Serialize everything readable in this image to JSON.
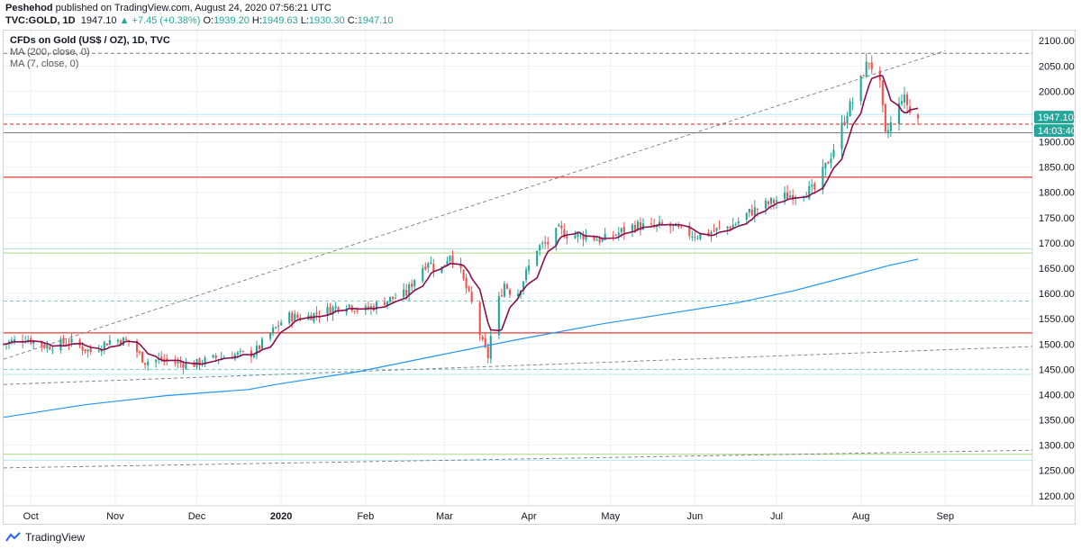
{
  "header": {
    "publisher": "Peshehod",
    "published_text": "published on TradingView.com, August 24, 2020 07:56:21 UTC",
    "symbol": "TVC:GOLD, 1D",
    "last": "1947.10",
    "change": "+7.45 (+0.38%)",
    "o_label": "O:",
    "o_value": "1939.20",
    "h_label": "H:",
    "h_value": "1949.63",
    "l_label": "L:",
    "l_value": "1930.30",
    "c_label": "C:",
    "c_value": "1947.10"
  },
  "legend": {
    "title": "CFDs on Gold (US$ / OZ), 1D, TVC",
    "ma200": "MA (200, close, 0)",
    "ma7": "MA (7, close, 0)"
  },
  "price_tag": {
    "price": "1947.10",
    "countdown": "14:03:40"
  },
  "footer": {
    "brand": "TradingView"
  },
  "colors": {
    "up": "#26a69a",
    "down": "#ef5350",
    "ma7": "#880e4f",
    "ma200": "#2196f3",
    "red_line": "#e53935",
    "green_line": "#aed581",
    "grid": "#eef1f5",
    "axis_text": "#131722"
  },
  "chart_data": {
    "type": "candlestick",
    "title": "CFDs on Gold (US$ / OZ), 1D, TVC",
    "ylim": [
      1180,
      2120
    ],
    "y_ticks": [
      1200,
      1250,
      1300,
      1350,
      1400,
      1450,
      1500,
      1550,
      1600,
      1650,
      1700,
      1750,
      1800,
      1850,
      1900,
      1950,
      2000,
      2050,
      2100
    ],
    "x_ticks": [
      {
        "label": "Oct",
        "day": 10
      },
      {
        "label": "Nov",
        "day": 41
      },
      {
        "label": "Dec",
        "day": 71
      },
      {
        "label": "2020",
        "day": 102
      },
      {
        "label": "Feb",
        "day": 133
      },
      {
        "label": "Mar",
        "day": 162
      },
      {
        "label": "Apr",
        "day": 193
      },
      {
        "label": "May",
        "day": 223
      },
      {
        "label": "Jun",
        "day": 254
      },
      {
        "label": "Jul",
        "day": 284
      },
      {
        "label": "Aug",
        "day": 315
      },
      {
        "label": "Sep",
        "day": 346
      }
    ],
    "xlim": [
      0,
      378
    ],
    "anchors": [
      [
        0,
        1500
      ],
      [
        8,
        1512
      ],
      [
        16,
        1495
      ],
      [
        24,
        1505
      ],
      [
        32,
        1485
      ],
      [
        40,
        1510
      ],
      [
        46,
        1505
      ],
      [
        52,
        1465
      ],
      [
        58,
        1470
      ],
      [
        64,
        1462
      ],
      [
        70,
        1460
      ],
      [
        76,
        1470
      ],
      [
        84,
        1478
      ],
      [
        92,
        1482
      ],
      [
        98,
        1520
      ],
      [
        104,
        1555
      ],
      [
        110,
        1552
      ],
      [
        118,
        1565
      ],
      [
        126,
        1580
      ],
      [
        132,
        1565
      ],
      [
        140,
        1585
      ],
      [
        148,
        1600
      ],
      [
        152,
        1640
      ],
      [
        156,
        1665
      ],
      [
        160,
        1640
      ],
      [
        164,
        1680
      ],
      [
        168,
        1640
      ],
      [
        172,
        1580
      ],
      [
        176,
        1500
      ],
      [
        178,
        1475
      ],
      [
        180,
        1555
      ],
      [
        184,
        1620
      ],
      [
        188,
        1590
      ],
      [
        192,
        1640
      ],
      [
        196,
        1690
      ],
      [
        200,
        1700
      ],
      [
        204,
        1725
      ],
      [
        208,
        1715
      ],
      [
        214,
        1715
      ],
      [
        220,
        1705
      ],
      [
        226,
        1720
      ],
      [
        232,
        1735
      ],
      [
        238,
        1730
      ],
      [
        244,
        1735
      ],
      [
        250,
        1720
      ],
      [
        256,
        1715
      ],
      [
        262,
        1725
      ],
      [
        268,
        1735
      ],
      [
        274,
        1760
      ],
      [
        280,
        1775
      ],
      [
        286,
        1790
      ],
      [
        292,
        1800
      ],
      [
        298,
        1805
      ],
      [
        302,
        1850
      ],
      [
        306,
        1900
      ],
      [
        310,
        1960
      ],
      [
        314,
        2000
      ],
      [
        316,
        2040
      ],
      [
        318,
        2060
      ],
      [
        320,
        2040
      ],
      [
        322,
        2010
      ],
      [
        324,
        1910
      ],
      [
        326,
        1935
      ],
      [
        328,
        1950
      ],
      [
        330,
        1990
      ],
      [
        332,
        1975
      ],
      [
        334,
        1940
      ],
      [
        336,
        1947
      ]
    ],
    "ma200": [
      [
        0,
        1355
      ],
      [
        30,
        1380
      ],
      [
        60,
        1398
      ],
      [
        90,
        1410
      ],
      [
        100,
        1420
      ],
      [
        130,
        1445
      ],
      [
        160,
        1478
      ],
      [
        190,
        1510
      ],
      [
        220,
        1540
      ],
      [
        250,
        1565
      ],
      [
        270,
        1582
      ],
      [
        290,
        1605
      ],
      [
        310,
        1633
      ],
      [
        325,
        1655
      ],
      [
        336,
        1668
      ]
    ],
    "horizontal_lines": [
      {
        "price": 2075,
        "style": "dashed",
        "color": "#787b86"
      },
      {
        "price": 1954,
        "style": "solid",
        "color": "#b2ebf2"
      },
      {
        "price": 1935,
        "style": "dashed",
        "color": "#e53935"
      },
      {
        "price": 1918,
        "style": "solid",
        "color": "#787b86"
      },
      {
        "price": 1830,
        "style": "solid",
        "color": "#e53935"
      },
      {
        "price": 1688,
        "style": "solid",
        "color": "#b2dfdb"
      },
      {
        "price": 1680,
        "style": "solid",
        "color": "#aed581"
      },
      {
        "price": 1585,
        "style": "dashed",
        "color": "#80cbc4"
      },
      {
        "price": 1522,
        "style": "solid",
        "color": "#e53935"
      },
      {
        "price": 1450,
        "style": "dashed",
        "color": "#80cbc4"
      },
      {
        "price": 1440,
        "style": "solid",
        "color": "#b2ebf2"
      },
      {
        "price": 1282,
        "style": "solid",
        "color": "#aed581"
      },
      {
        "price": 1270,
        "style": "solid",
        "color": "#b2ebf2"
      }
    ],
    "trendlines": [
      {
        "from": [
          0,
          1470
        ],
        "to": [
          346,
          2080
        ],
        "style": "dashed",
        "color": "#787b86"
      },
      {
        "from": [
          0,
          1420
        ],
        "to": [
          378,
          1495
        ],
        "style": "dashed",
        "color": "#787b86"
      },
      {
        "from": [
          0,
          1255
        ],
        "to": [
          378,
          1290
        ],
        "style": "dashed",
        "color": "#787b86"
      }
    ]
  }
}
